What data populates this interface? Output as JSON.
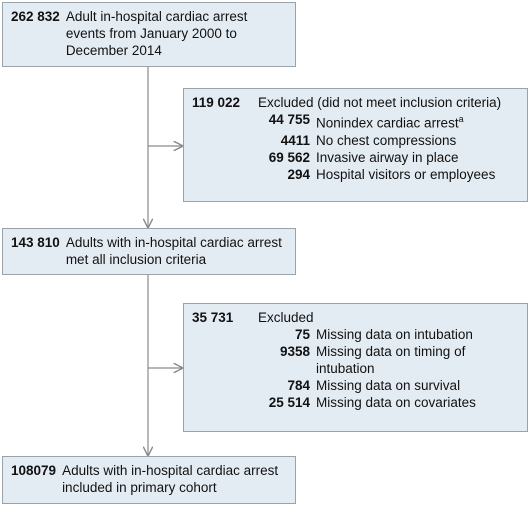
{
  "boxes": [
    {
      "count": "262 832",
      "label": "Adult in-hospital cardiac arrest events from January 2000 to December 2014"
    },
    {
      "count": "143 810",
      "label": "Adults with in-hospital cardiac arrest met all inclusion criteria"
    },
    {
      "count": "108079",
      "label": "Adults with in-hospital cardiac arrest included in primary cohort"
    }
  ],
  "exclusions": [
    {
      "count": "119 022",
      "label": "Excluded (did not meet inclusion criteria)",
      "items": [
        {
          "count": "44 755",
          "label": "Nonindex cardiac arrest",
          "note": "a"
        },
        {
          "count": "4411",
          "label": "No chest compressions"
        },
        {
          "count": "69 562",
          "label": "Invasive airway in place"
        },
        {
          "count": "294",
          "label": "Hospital visitors or employees"
        }
      ]
    },
    {
      "count": "35 731",
      "label": "Excluded",
      "items": [
        {
          "count": "75",
          "label": "Missing data on intubation"
        },
        {
          "count": "9358",
          "label": "Missing data on timing of intubation"
        },
        {
          "count": "784",
          "label": "Missing data on survival"
        },
        {
          "count": "25 514",
          "label": "Missing data on covariates"
        }
      ]
    }
  ]
}
